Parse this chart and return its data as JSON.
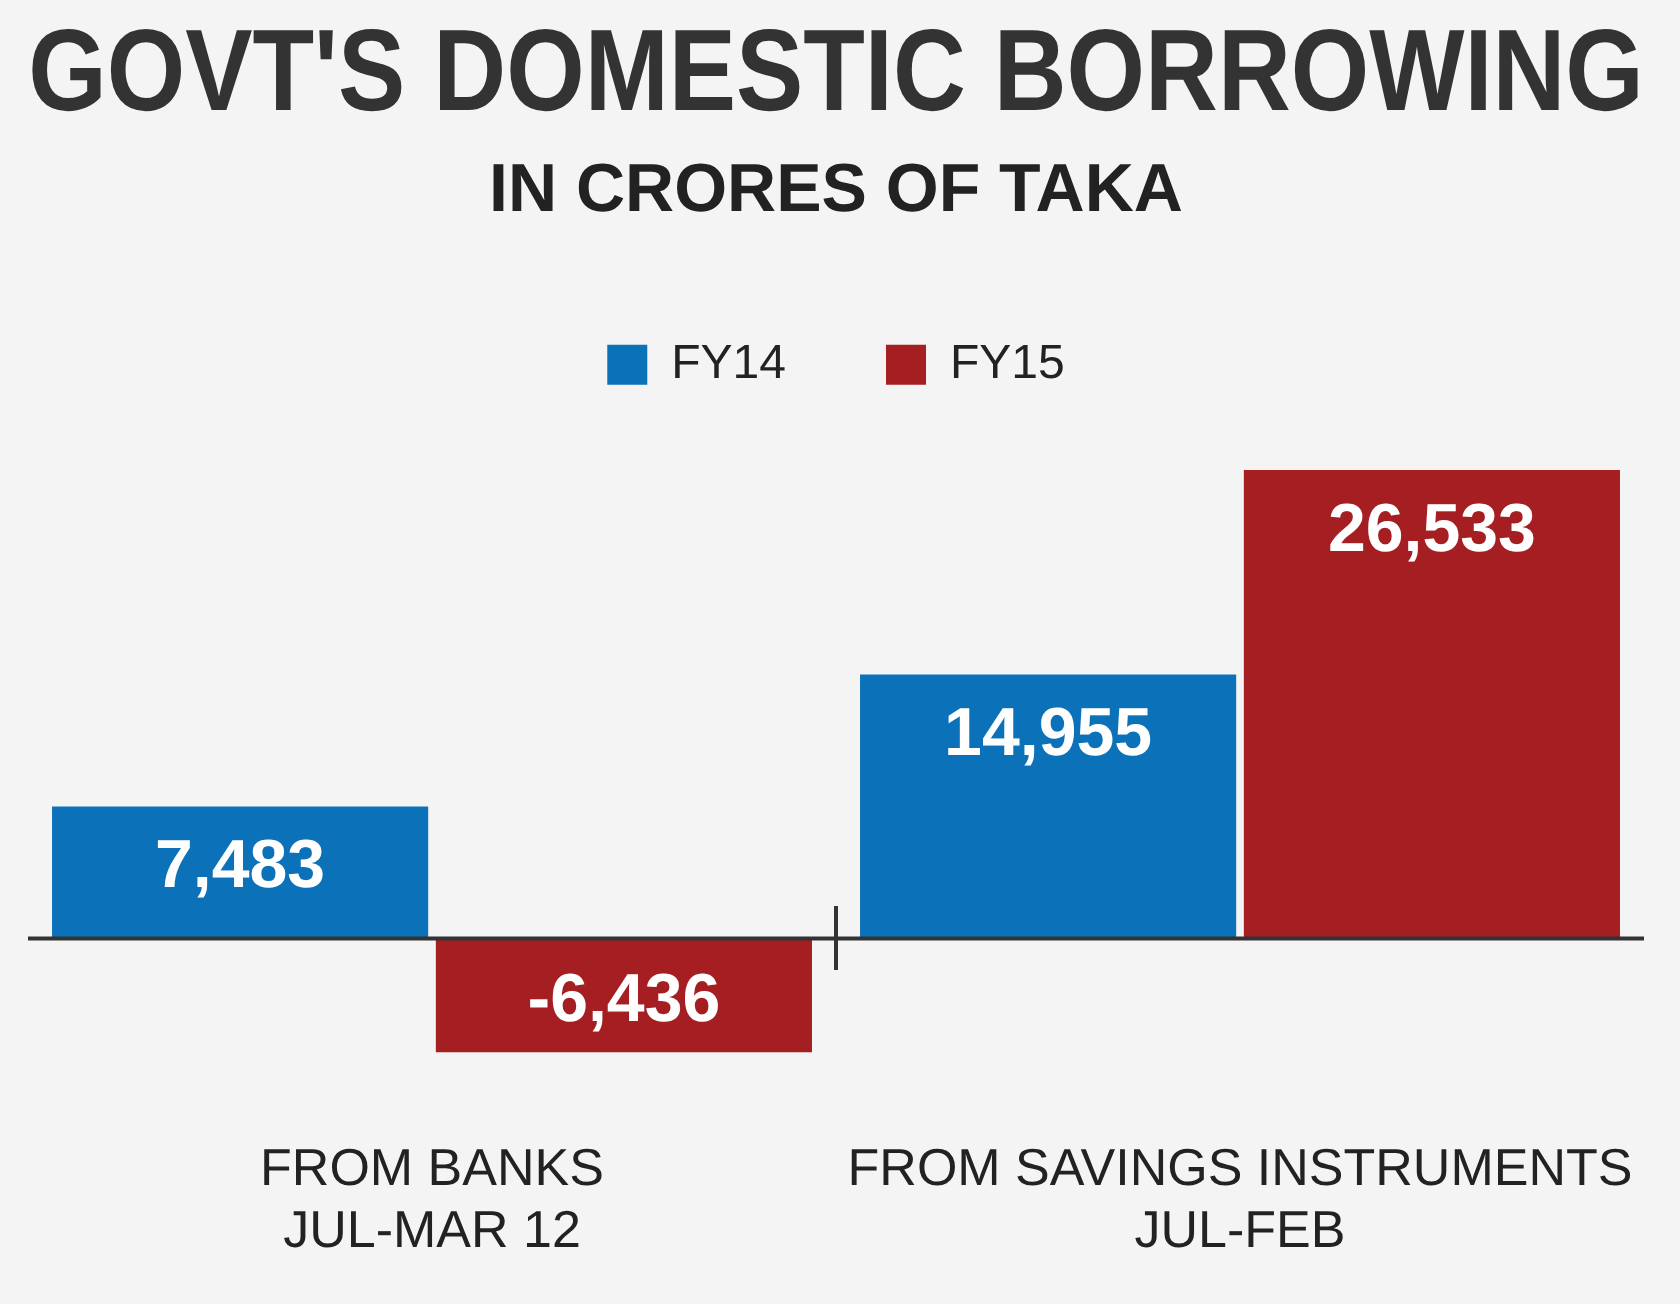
{
  "chart_data": {
    "type": "bar",
    "title": "GOVT'S DOMESTIC BORROWING",
    "subtitle": "IN CRORES OF TAKA",
    "categories": [
      "FROM BANKS\nJUL-MAR 12",
      "FROM SAVINGS INSTRUMENTS\nJUL-FEB"
    ],
    "series": [
      {
        "name": "FY14",
        "color": "#0b72b9",
        "values": [
          7483,
          14955
        ],
        "value_labels": [
          "7,483",
          "14,955"
        ]
      },
      {
        "name": "FY15",
        "color": "#a41e22",
        "values": [
          -6436,
          26533
        ],
        "value_labels": [
          "-6,436",
          "26,533"
        ]
      }
    ],
    "legend": "top"
  }
}
